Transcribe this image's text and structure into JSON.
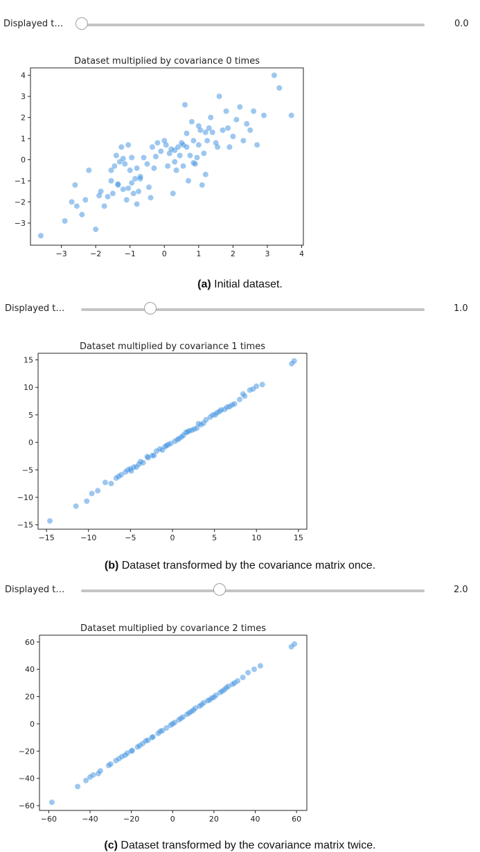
{
  "panels": [
    {
      "slider_label": "Displayed t…",
      "slider_value": "0.0",
      "slider_fraction": 0.0,
      "caption_letter": "(a)",
      "caption_text": " Initial dataset.",
      "chart_data": {
        "type": "scatter",
        "title": "Dataset multiplied by covariance 0 times",
        "xlabel": "",
        "ylabel": "",
        "xlim": [
          -3.9,
          4.05
        ],
        "ylim": [
          -4.05,
          4.35
        ],
        "xticks": [
          -3,
          -2,
          -1,
          0,
          1,
          2,
          3,
          4
        ],
        "xtick_labels": [
          "−3",
          "−2",
          "−1",
          "0",
          "1",
          "2",
          "3",
          "4"
        ],
        "yticks": [
          -3,
          -2,
          -1,
          0,
          1,
          2,
          3,
          4
        ],
        "ytick_labels": [
          "−3",
          "−2",
          "−1",
          "0",
          "1",
          "2",
          "3",
          "4"
        ],
        "grid": false,
        "color": "#1f77b4",
        "x": [
          -3.6,
          -2.9,
          -2.7,
          -2.6,
          -2.55,
          -2.4,
          -2.3,
          -2.2,
          -2.0,
          -1.9,
          -1.85,
          -1.75,
          -1.55,
          -1.5,
          -1.45,
          -1.4,
          -1.35,
          -1.3,
          -1.25,
          -1.2,
          -1.15,
          -1.1,
          -1.05,
          -1.0,
          -0.95,
          -0.9,
          -0.85,
          -0.8,
          -0.75,
          -0.7,
          -0.6,
          -0.5,
          -0.45,
          -0.4,
          -0.35,
          -0.3,
          -0.2,
          -0.1,
          0.0,
          0.05,
          0.1,
          0.2,
          0.25,
          0.3,
          0.35,
          0.4,
          0.45,
          0.5,
          0.55,
          0.6,
          0.65,
          0.7,
          0.75,
          0.8,
          0.85,
          0.9,
          0.95,
          1.0,
          1.05,
          1.1,
          1.15,
          1.2,
          1.25,
          1.3,
          1.35,
          1.4,
          1.5,
          1.55,
          1.6,
          1.7,
          1.8,
          1.85,
          1.9,
          2.0,
          2.1,
          2.2,
          2.3,
          2.4,
          2.5,
          2.6,
          2.7,
          2.9,
          3.2,
          3.35,
          3.7,
          -1.55,
          -1.2,
          -0.95,
          -0.7,
          0.3,
          0.65,
          1.2,
          -1.65,
          -1.05,
          -0.25,
          0.55,
          0.85,
          1.0,
          -1.35,
          -0.8,
          0.15
        ],
        "y": [
          -3.6,
          -2.9,
          -2.0,
          -1.2,
          -2.2,
          -2.6,
          -1.9,
          -0.5,
          -3.3,
          -1.7,
          -1.5,
          -2.2,
          -1.0,
          -1.6,
          -0.3,
          0.2,
          -1.2,
          -0.1,
          0.6,
          -1.4,
          -0.2,
          -1.9,
          0.7,
          -0.5,
          0.1,
          -1.6,
          -0.9,
          -2.1,
          -1.5,
          -0.8,
          0.1,
          -0.2,
          -1.3,
          -1.8,
          0.6,
          -0.4,
          0.8,
          0.4,
          0.9,
          0.7,
          -0.3,
          0.5,
          -1.6,
          -0.1,
          -0.5,
          0.6,
          0.2,
          0.8,
          -0.3,
          2.6,
          0.6,
          -1.0,
          0.2,
          1.8,
          0.9,
          -0.2,
          0.1,
          0.7,
          1.4,
          -1.2,
          0.3,
          1.3,
          0.9,
          1.5,
          2.0,
          1.3,
          0.8,
          0.6,
          3.0,
          1.4,
          2.3,
          1.5,
          0.6,
          1.1,
          1.9,
          2.5,
          0.9,
          1.7,
          1.4,
          2.3,
          0.7,
          2.1,
          4.0,
          3.4,
          2.1,
          -0.5,
          0.05,
          -1.1,
          -0.9,
          0.45,
          1.25,
          -0.7,
          -1.75,
          -1.35,
          0.15,
          0.7,
          -0.15,
          1.6,
          -1.15,
          -0.4,
          0.3
        ]
      }
    },
    {
      "slider_label": "Displayed t…",
      "slider_value": "1.0",
      "slider_fraction": 0.5,
      "caption_letter": "(b)",
      "caption_text": " Dataset transformed by the covariance matrix once.",
      "chart_data": {
        "type": "scatter",
        "title": "Dataset multiplied by covariance 1 times",
        "xlabel": "",
        "ylabel": "",
        "xlim": [
          -16.0,
          16.0
        ],
        "ylim": [
          -15.8,
          16.2
        ],
        "xticks": [
          -15,
          -10,
          -5,
          0,
          5,
          10,
          15
        ],
        "xtick_labels": [
          "−15",
          "−10",
          "−5",
          "0",
          "5",
          "10",
          "15"
        ],
        "yticks": [
          -15,
          -10,
          -5,
          0,
          5,
          10,
          15
        ],
        "ytick_labels": [
          "−15",
          "−10",
          "−5",
          "0",
          "5",
          "10",
          "15"
        ],
        "grid": false,
        "color": "#1f77b4",
        "x": [
          -14.6,
          -11.5,
          -10.2,
          -9.6,
          -8.9,
          -8.0,
          -7.3,
          -6.7,
          -6.1,
          -5.6,
          -5.0,
          -4.6,
          -4.0,
          -3.5,
          -2.9,
          -2.4,
          -1.9,
          -1.2,
          -0.7,
          -0.2,
          0.3,
          0.8,
          1.3,
          1.8,
          2.3,
          2.9,
          3.4,
          4.0,
          4.5,
          5.1,
          5.6,
          6.2,
          6.8,
          7.4,
          8.0,
          8.6,
          9.2,
          10.0,
          10.7,
          14.2,
          14.5,
          -5.3,
          -3.8,
          -2.2,
          -0.9,
          0.6,
          2.0,
          3.7,
          5.3,
          7.1,
          8.4,
          -6.4,
          -4.3,
          -1.5,
          1.1,
          2.6,
          4.8,
          6.5,
          9.6,
          -4.9,
          -3.0,
          -0.5,
          1.6,
          3.1,
          5.8
        ],
        "y": [
          -14.3,
          -11.6,
          -10.7,
          -9.3,
          -8.8,
          -7.3,
          -7.5,
          -6.5,
          -5.9,
          -5.4,
          -4.8,
          -4.5,
          -4.0,
          -3.7,
          -2.8,
          -2.4,
          -1.6,
          -1.4,
          -0.6,
          -0.2,
          0.2,
          0.7,
          1.3,
          1.9,
          2.2,
          2.6,
          3.2,
          4.1,
          4.6,
          5.0,
          5.6,
          6.0,
          6.5,
          7.0,
          7.8,
          8.4,
          9.5,
          10.2,
          10.5,
          14.3,
          14.8,
          -5.0,
          -3.5,
          -2.4,
          -0.8,
          0.5,
          2.1,
          3.5,
          5.4,
          6.8,
          8.8,
          -6.2,
          -4.5,
          -1.2,
          1.0,
          2.4,
          5.0,
          6.4,
          9.7,
          -5.2,
          -2.6,
          -0.4,
          1.8,
          3.4,
          5.9
        ]
      }
    },
    {
      "slider_label": "Displayed t…",
      "slider_value": "2.0",
      "slider_fraction": 1.0,
      "caption_letter": "(c)",
      "caption_text": " Dataset transformed by the covariance matrix twice.",
      "chart_data": {
        "type": "scatter",
        "title": "Dataset multiplied by covariance 2 times",
        "xlabel": "",
        "ylabel": "",
        "xlim": [
          -64.5,
          65.0
        ],
        "ylim": [
          -63.5,
          65.0
        ],
        "xticks": [
          -60,
          -40,
          -20,
          0,
          20,
          40,
          60
        ],
        "xtick_labels": [
          "−60",
          "−40",
          "−20",
          "0",
          "20",
          "40",
          "60"
        ],
        "yticks": [
          -60,
          -40,
          -20,
          0,
          20,
          40,
          60
        ],
        "ytick_labels": [
          "−60",
          "−40",
          "−20",
          "0",
          "20",
          "40",
          "60"
        ],
        "grid": false,
        "color": "#1f77b4",
        "x": [
          -58.5,
          -46.0,
          -42.0,
          -38.5,
          -35.0,
          -31.0,
          -27.5,
          -24.5,
          -22.0,
          -19.5,
          -17.0,
          -14.5,
          -12.0,
          -9.5,
          -7.0,
          -5.0,
          -3.0,
          -1.0,
          1.0,
          3.0,
          5.0,
          7.0,
          9.0,
          11.0,
          13.0,
          15.0,
          17.0,
          19.0,
          21.0,
          23.0,
          25.0,
          27.0,
          29.0,
          31.5,
          34.0,
          36.5,
          39.5,
          42.5,
          57.5,
          59.0,
          -40.0,
          -30.0,
          -20.0,
          -10.0,
          0.0,
          10.0,
          20.0,
          30.0,
          -36.0,
          -26.0,
          -16.0,
          -6.0,
          4.0,
          14.0,
          24.0,
          -23.0,
          -13.0,
          8.0,
          18.0,
          26.0
        ],
        "y": [
          -57.5,
          -46.0,
          -41.5,
          -37.5,
          -34.5,
          -30.5,
          -27.0,
          -24.0,
          -21.5,
          -19.5,
          -17.0,
          -14.5,
          -12.0,
          -9.5,
          -7.0,
          -5.0,
          -3.0,
          -1.0,
          1.0,
          3.0,
          5.0,
          7.0,
          9.0,
          11.5,
          13.0,
          15.5,
          17.0,
          19.0,
          21.0,
          23.0,
          25.0,
          27.5,
          29.0,
          31.5,
          34.0,
          37.5,
          40.0,
          42.5,
          56.5,
          58.5,
          -39.0,
          -29.5,
          -20.0,
          -10.0,
          0.0,
          10.0,
          19.5,
          30.0,
          -36.5,
          -25.5,
          -16.0,
          -5.5,
          4.0,
          14.0,
          24.0,
          -23.0,
          -12.5,
          8.0,
          17.5,
          26.5
        ]
      }
    }
  ]
}
